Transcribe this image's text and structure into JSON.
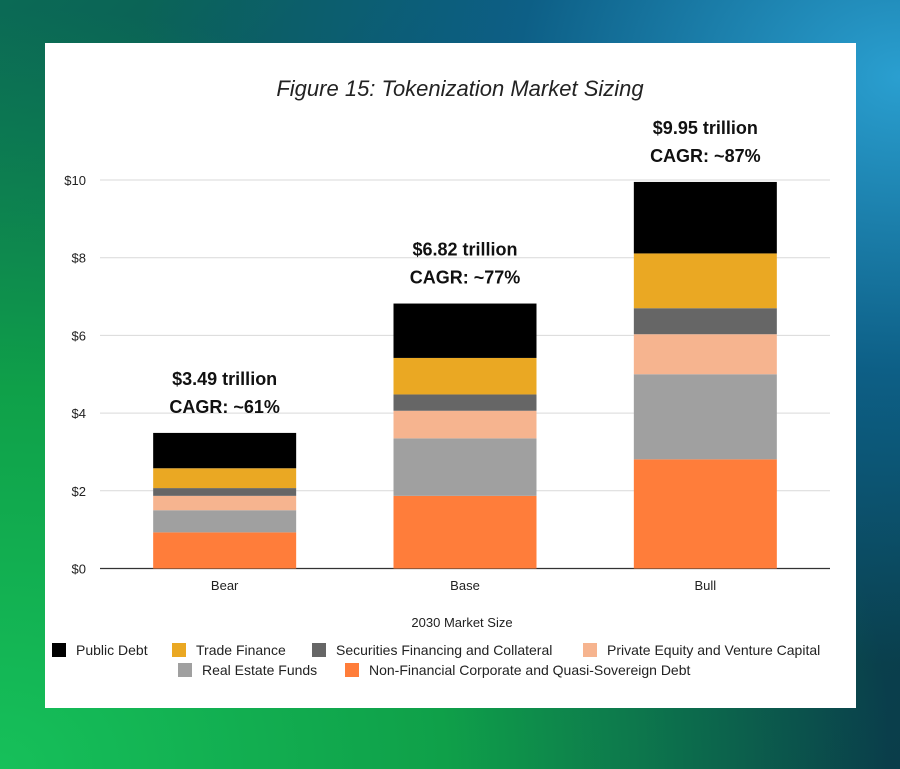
{
  "chart_data": {
    "type": "bar",
    "stacked": true,
    "title": "Figure 15: Tokenization Market Sizing",
    "xlabel": "2030 Market Size",
    "ylabel": "",
    "categories": [
      "Bear",
      "Base",
      "Bull"
    ],
    "ylim": [
      0,
      10
    ],
    "yticks": [
      "$0",
      "$2",
      "$4",
      "$6",
      "$8",
      "$10"
    ],
    "ytick_values": [
      0,
      2,
      4,
      6,
      8,
      10
    ],
    "grid": true,
    "legend_placement": "bottom",
    "series": [
      {
        "name": "Non-Financial Corporate and Quasi-Sovereign Debt",
        "color": "#ff7d3a",
        "values": [
          0.93,
          1.87,
          2.81
        ]
      },
      {
        "name": "Real Estate Funds",
        "color": "#a0a0a0",
        "values": [
          0.57,
          1.48,
          2.19
        ]
      },
      {
        "name": "Private Equity and Venture Capital",
        "color": "#f6b48f",
        "values": [
          0.37,
          0.71,
          1.03
        ]
      },
      {
        "name": "Securities Financing and Collateral",
        "color": "#666666",
        "values": [
          0.2,
          0.42,
          0.67
        ]
      },
      {
        "name": "Trade Finance",
        "color": "#eaa823",
        "values": [
          0.51,
          0.94,
          1.41
        ]
      },
      {
        "name": "Public Debt",
        "color": "#000000",
        "values": [
          0.91,
          1.4,
          1.84
        ]
      }
    ],
    "legend_order": [
      "Public Debt",
      "Trade Finance",
      "Securities Financing and Collateral",
      "Private Equity and Venture Capital",
      "Real Estate Funds",
      "Non-Financial Corporate and Quasi-Sovereign Debt"
    ],
    "annotations": [
      {
        "category": "Bear",
        "total": "$3.49 trillion",
        "cagr": "CAGR: ~61%"
      },
      {
        "category": "Base",
        "total": "$6.82 trillion",
        "cagr": "CAGR: ~77%"
      },
      {
        "category": "Bull",
        "total": "$9.95 trillion",
        "cagr": "CAGR: ~87%"
      }
    ]
  }
}
